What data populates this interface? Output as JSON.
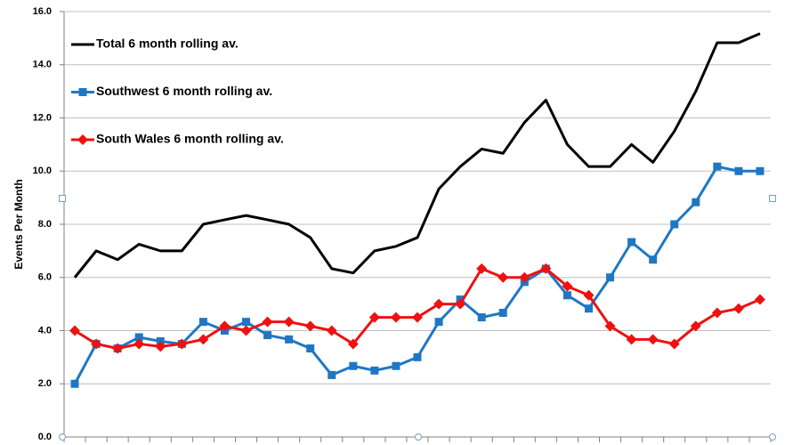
{
  "chart_data": {
    "type": "line",
    "y_label": "Events Per Month",
    "categories": [
      null,
      null,
      null,
      null,
      null,
      null,
      null,
      null,
      null,
      null,
      null,
      null,
      null,
      null,
      null,
      null,
      null,
      null,
      null,
      null,
      null,
      null,
      null,
      null,
      null,
      null,
      null,
      null,
      null,
      null,
      null,
      null,
      null
    ],
    "series": [
      {
        "name": "Total 6 month rolling av.",
        "color": "#000000",
        "marker": "none",
        "values": [
          6.0,
          7.0,
          6.67,
          7.25,
          7.0,
          7.0,
          8.0,
          8.17,
          8.33,
          8.17,
          8.0,
          7.5,
          6.33,
          6.17,
          7.0,
          7.17,
          7.5,
          9.33,
          10.17,
          10.83,
          10.67,
          11.83,
          12.67,
          11.0,
          10.17,
          10.17,
          11.0,
          10.33,
          11.5,
          13.0,
          14.83,
          14.83,
          15.17
        ]
      },
      {
        "name": "Southwest 6 month rolling av.",
        "color": "#1f77c4",
        "marker": "square",
        "values": [
          2.0,
          3.5,
          3.33,
          3.75,
          3.6,
          3.5,
          4.33,
          4.0,
          4.33,
          3.83,
          3.67,
          3.33,
          2.33,
          2.67,
          2.5,
          2.67,
          3.0,
          4.33,
          5.17,
          4.5,
          4.67,
          5.83,
          6.33,
          5.33,
          4.83,
          6.0,
          7.33,
          6.67,
          8.0,
          8.83,
          10.17,
          10.0,
          10.0
        ]
      },
      {
        "name": "South Wales 6 month rolling av.",
        "color": "#ee1111",
        "marker": "diamond",
        "values": [
          4.0,
          3.5,
          3.33,
          3.5,
          3.4,
          3.5,
          3.67,
          4.17,
          4.0,
          4.33,
          4.33,
          4.17,
          4.0,
          3.5,
          4.5,
          4.5,
          4.5,
          5.0,
          5.0,
          6.33,
          6.0,
          6.0,
          6.33,
          5.67,
          5.33,
          4.17,
          3.67,
          3.67,
          3.5,
          4.17,
          4.67,
          4.83,
          5.17
        ]
      }
    ],
    "ylim": [
      0,
      16
    ],
    "yticks": [
      {
        "value": 0,
        "label": "0.0"
      },
      {
        "value": 2,
        "label": "2.0"
      },
      {
        "value": 4,
        "label": "4.0"
      },
      {
        "value": 6,
        "label": "6.0"
      },
      {
        "value": 8,
        "label": "8.0"
      },
      {
        "value": 10,
        "label": "10.0"
      },
      {
        "value": 12,
        "label": "12.0"
      },
      {
        "value": 14,
        "label": "14.0"
      },
      {
        "value": 16,
        "label": "16.0"
      }
    ],
    "grid": true,
    "legend": "upper-left"
  }
}
